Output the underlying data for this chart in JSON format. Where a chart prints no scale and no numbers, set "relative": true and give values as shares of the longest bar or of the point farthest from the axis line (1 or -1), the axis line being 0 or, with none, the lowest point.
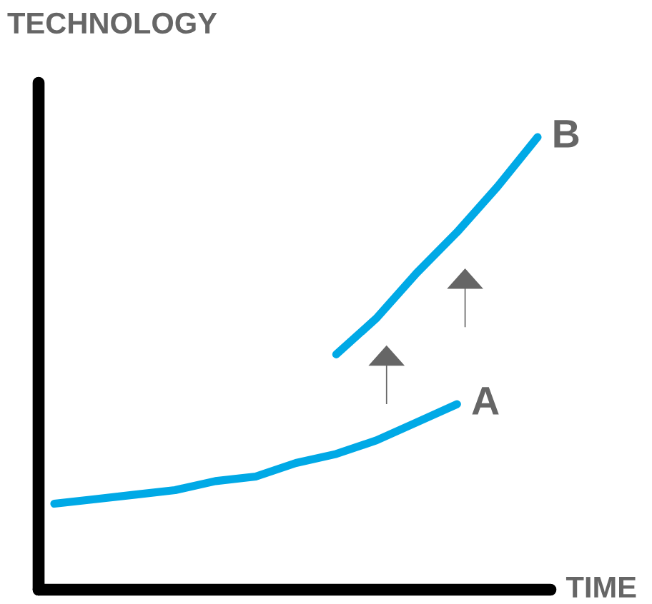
{
  "chart_data": {
    "type": "line",
    "xlabel": "TIME",
    "ylabel": "TECHNOLOGY",
    "relative": true,
    "categories": [
      null,
      null,
      null,
      null,
      null,
      null,
      null,
      null,
      null,
      null,
      null,
      null,
      null
    ],
    "series": [
      {
        "name": "A",
        "color": "#00a9e6",
        "values": [
          0.19,
          0.2,
          0.21,
          0.22,
          0.24,
          0.25,
          0.28,
          0.3,
          0.33,
          0.37,
          0.41,
          null,
          null
        ]
      },
      {
        "name": "B",
        "color": "#00a9e6",
        "values": [
          null,
          null,
          null,
          null,
          null,
          null,
          null,
          0.52,
          0.6,
          0.7,
          0.79,
          0.89,
          1
        ]
      }
    ],
    "grid": false,
    "legend": false,
    "marker": "none",
    "line_style": "solid"
  }
}
